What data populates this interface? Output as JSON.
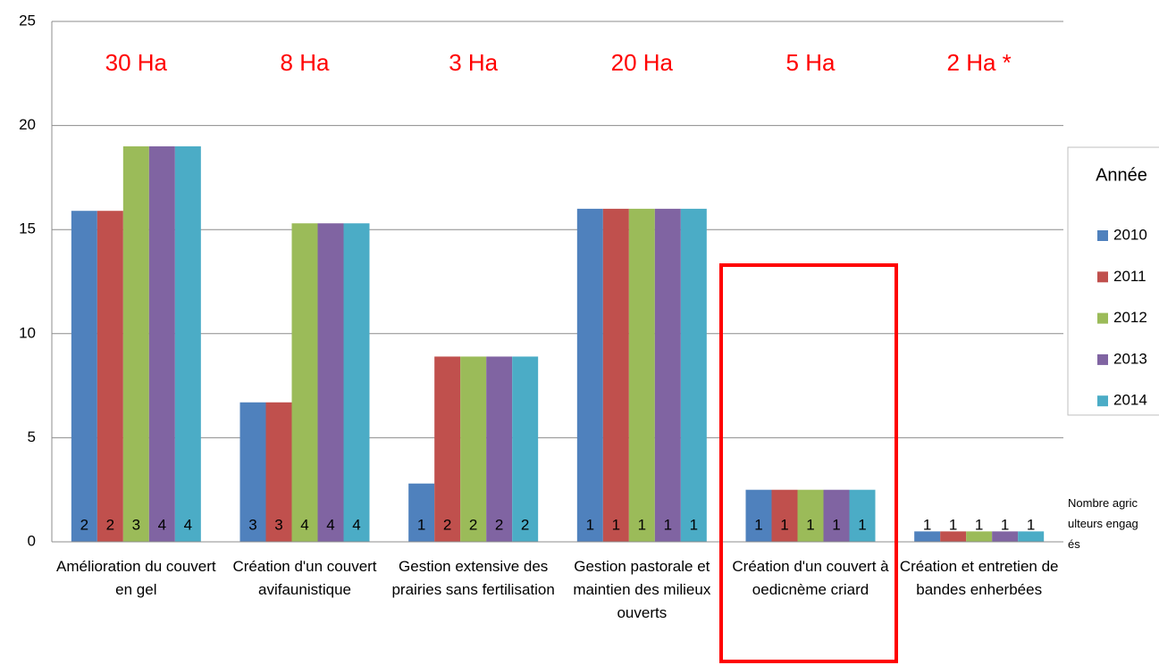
{
  "chart_data": {
    "type": "bar",
    "categories": [
      "Amélioration du couvert en gel",
      "Création d'un couvert avifaunistique",
      "Gestion extensive des prairies sans fertilisation",
      "Gestion pastorale et maintien des milieux ouverts",
      "Création d'un couvert à oedicnème criard",
      "Création et entretien de bandes enherbées"
    ],
    "series": [
      {
        "name": "2010",
        "color": "#4f81bd",
        "values": [
          15.9,
          6.7,
          2.8,
          16,
          2.5,
          0.5
        ],
        "farmers": [
          2,
          3,
          1,
          1,
          1,
          1
        ]
      },
      {
        "name": "2011",
        "color": "#c0504d",
        "values": [
          15.9,
          6.7,
          8.9,
          16,
          2.5,
          0.5
        ],
        "farmers": [
          2,
          3,
          2,
          1,
          1,
          1
        ]
      },
      {
        "name": "2012",
        "color": "#9bbb59",
        "values": [
          19,
          15.3,
          8.9,
          16,
          2.5,
          0.5
        ],
        "farmers": [
          3,
          4,
          2,
          1,
          1,
          1
        ]
      },
      {
        "name": "2013",
        "color": "#8064a2",
        "values": [
          19,
          15.3,
          8.9,
          16,
          2.5,
          0.5
        ],
        "farmers": [
          4,
          4,
          2,
          1,
          1,
          1
        ]
      },
      {
        "name": "2014",
        "color": "#4bacc6",
        "values": [
          19,
          15.3,
          8.9,
          16,
          2.5,
          0.5
        ],
        "farmers": [
          4,
          4,
          2,
          1,
          1,
          1
        ]
      }
    ],
    "annotations": [
      "30 Ha",
      "8 Ha",
      "3 Ha",
      "20 Ha",
      "5 Ha",
      "2 Ha *"
    ],
    "legend_title": "Année",
    "note": "Nombre agriculteurs engagés",
    "ylim": [
      0,
      25
    ],
    "yticks": [
      0,
      5,
      10,
      15,
      20,
      25
    ],
    "grid": true,
    "legend": "right"
  }
}
